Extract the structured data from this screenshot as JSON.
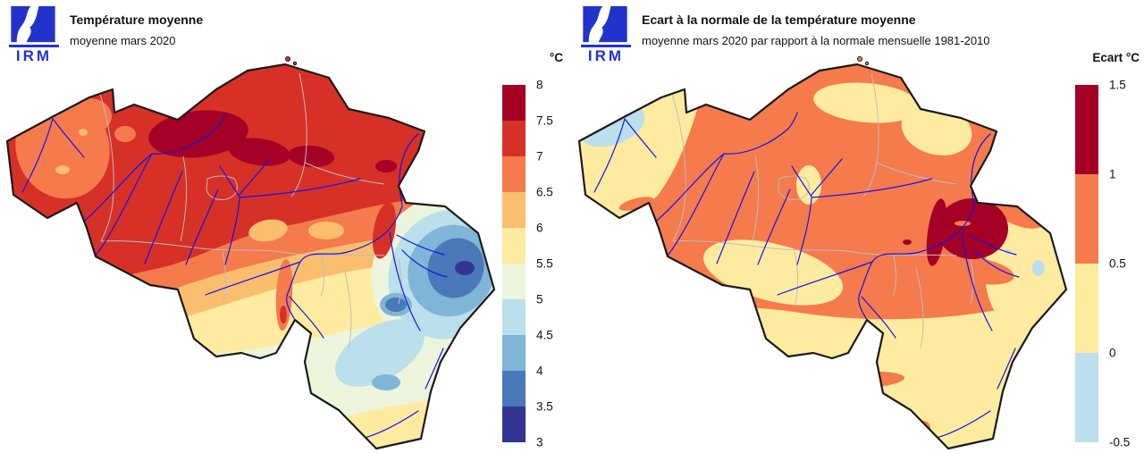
{
  "page": {
    "background": "#ffffff"
  },
  "logo": {
    "text": "IRM"
  },
  "palette": {
    "logo_blue": "#2233cc",
    "country_border": "#1a1a1a",
    "province_border": "#bdbdbd",
    "river": "#1414e6",
    "temp": {
      "t80": "#a50026",
      "t75": "#d73027",
      "t70": "#f57a4c",
      "t65": "#fbbd6e",
      "t60": "#feeb9f",
      "t55": "#ecf5dc",
      "t50": "#bbdfeb",
      "t45": "#7fb5d6",
      "t40": "#4a78b8",
      "t35": "#333593"
    },
    "anom": {
      "a15": "#a50026",
      "a10": "#f57a4c",
      "a05": "#feeb9f",
      "a00": "#bcdfec"
    }
  },
  "left_panel": {
    "title": "Température moyenne",
    "subtitle": "moyenne mars 2020",
    "colorbar": {
      "title": "°C",
      "ticks": [
        "8",
        "7.5",
        "7",
        "6.5",
        "6",
        "5.5",
        "5",
        "4.5",
        "4",
        "3.5",
        "3"
      ],
      "colors": [
        "#a50026",
        "#d73027",
        "#f57a4c",
        "#fbbd6e",
        "#feeb9f",
        "#ecf5dc",
        "#bbdfeb",
        "#7fb5d6",
        "#4a78b8",
        "#333593"
      ]
    }
  },
  "right_panel": {
    "title": "Ecart à la normale de la température moyenne",
    "subtitle": "moyenne mars 2020 par rapport à la normale mensuelle 1981-2010",
    "colorbar": {
      "title": "Ecart °C",
      "ticks": [
        "1.5",
        "1",
        "0.5",
        "0",
        "-0.5"
      ],
      "colors": [
        "#a50026",
        "#f57a4c",
        "#feeb9f",
        "#bcdfec"
      ]
    }
  },
  "chart_data": [
    {
      "type": "choropleth_map",
      "region": "Belgium",
      "title": "Température moyenne",
      "subtitle": "moyenne mars 2020",
      "unit": "°C",
      "scale": {
        "min": 3,
        "max": 8,
        "step": 0.5,
        "tick_labels": [
          8,
          7.5,
          7,
          6.5,
          6,
          5.5,
          5,
          4.5,
          4,
          3.5,
          3
        ],
        "colors_top_to_bottom": [
          "#a50026",
          "#d73027",
          "#f57a4c",
          "#fbbd6e",
          "#feeb9f",
          "#ecf5dc",
          "#bbdfeb",
          "#7fb5d6",
          "#4a78b8",
          "#333593"
        ]
      },
      "pattern_summary": "Warmest 7.5-8 °C pockets in central-north Belgium (Antwerp/Brussels area); 7-7.5 °C over most of Flanders; 6-7 °C coastal west and central band; 5-6 °C over south-west and middle Ardennes; coldest 3-4.5 °C in the east (Hautes Fagnes); 5-6 °C again at the far southern tip."
    },
    {
      "type": "choropleth_map",
      "region": "Belgium",
      "title": "Ecart à la normale de la température moyenne",
      "subtitle": "moyenne mars 2020 par rapport à la normale mensuelle 1981-2010",
      "unit": "°C",
      "scale": {
        "min": -0.5,
        "max": 1.5,
        "step": 0.5,
        "tick_labels": [
          1.5,
          1,
          0.5,
          0,
          -0.5
        ],
        "colors_top_to_bottom": [
          "#a50026",
          "#f57a4c",
          "#feeb9f",
          "#bcdfec"
        ]
      },
      "pattern_summary": "Anomaly +0.5 to +1 °C over most of central and northern Belgium; 0 to +0.5 °C over West Flanders, the north-east and the southern Ardennes; +1 to +1.5 °C spot in the east near Liège/Hautes Fagnes; slightly negative (-0.5 to 0 °C) at the north-west coast and a tiny spot on the eastern border."
    }
  ]
}
